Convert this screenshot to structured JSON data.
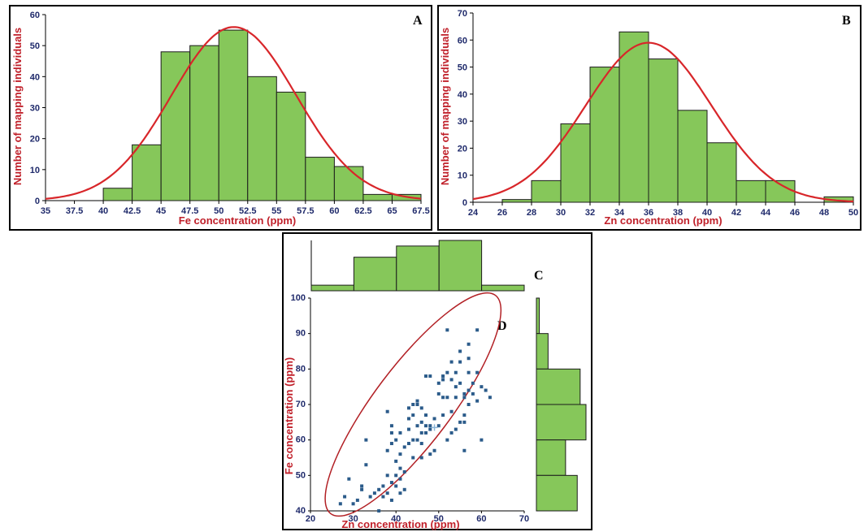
{
  "chart_data": [
    {
      "panel_label": "A",
      "type": "bar",
      "xlabel": "Fe concentration (ppm)",
      "ylabel": "Number of mapping individuals",
      "xlim": [
        35,
        67.5
      ],
      "ylim": [
        0,
        60
      ],
      "x_ticks": [
        "35",
        "37.5",
        "40",
        "42.5",
        "45",
        "47.5",
        "50",
        "52.5",
        "55",
        "57.5",
        "60",
        "62.5",
        "65",
        "67.5"
      ],
      "y_ticks": [
        "0",
        "10",
        "20",
        "30",
        "40",
        "50",
        "60"
      ],
      "bin_edges": [
        40,
        42.5,
        45,
        47.5,
        50,
        52.5,
        55,
        57.5,
        60,
        62.5,
        65,
        67.5
      ],
      "values": [
        4,
        18,
        48,
        50,
        55,
        40,
        35,
        14,
        11,
        2,
        2
      ],
      "normal_curve": {
        "mean": 51.3,
        "sd": 5.4,
        "peak": 56
      }
    },
    {
      "panel_label": "B",
      "type": "bar",
      "xlabel": "Zn concentration (ppm)",
      "ylabel": "Number of mapping individuals",
      "xlim": [
        24,
        50
      ],
      "ylim": [
        0,
        70
      ],
      "x_ticks": [
        "24",
        "26",
        "28",
        "30",
        "32",
        "34",
        "36",
        "38",
        "40",
        "42",
        "44",
        "46",
        "48",
        "50"
      ],
      "y_ticks": [
        "0",
        "10",
        "20",
        "30",
        "40",
        "50",
        "60",
        "70"
      ],
      "bin_edges": [
        26,
        28,
        30,
        32,
        34,
        36,
        38,
        40,
        42,
        44,
        46,
        48,
        50
      ],
      "values": [
        1,
        8,
        29,
        50,
        63,
        53,
        34,
        22,
        8,
        8,
        0,
        2
      ],
      "normal_curve": {
        "mean": 36,
        "sd": 4.3,
        "peak": 59
      }
    },
    {
      "panel_label": "C",
      "type": "bar",
      "orientation": "vertical",
      "values": [
        1,
        6,
        8,
        9,
        1
      ]
    },
    {
      "panel_label": "D",
      "type": "scatter",
      "xlabel": "Zn concentration (ppm)",
      "ylabel": "Fe concentration (ppm)",
      "xlim": [
        20,
        70
      ],
      "ylim": [
        40,
        100
      ],
      "x_ticks": [
        "20",
        "30",
        "40",
        "50",
        "60",
        "70"
      ],
      "y_ticks": [
        "40",
        "50",
        "60",
        "70",
        "80",
        "90",
        "100"
      ],
      "points": [
        [
          27,
          42
        ],
        [
          28,
          44
        ],
        [
          29,
          49
        ],
        [
          30,
          42
        ],
        [
          31,
          43
        ],
        [
          32,
          46
        ],
        [
          32,
          47
        ],
        [
          33,
          53
        ],
        [
          33,
          60
        ],
        [
          34,
          44
        ],
        [
          35,
          45
        ],
        [
          36,
          46
        ],
        [
          36,
          40
        ],
        [
          37,
          47
        ],
        [
          37,
          44
        ],
        [
          38,
          45
        ],
        [
          38,
          50
        ],
        [
          38,
          57
        ],
        [
          38,
          68
        ],
        [
          39,
          43
        ],
        [
          39,
          48
        ],
        [
          39,
          59
        ],
        [
          39,
          62
        ],
        [
          39,
          64
        ],
        [
          40,
          47
        ],
        [
          40,
          50
        ],
        [
          40,
          54
        ],
        [
          40,
          60
        ],
        [
          41,
          45
        ],
        [
          41,
          49
        ],
        [
          41,
          52
        ],
        [
          41,
          56
        ],
        [
          41,
          62
        ],
        [
          42,
          46
        ],
        [
          42,
          51
        ],
        [
          42,
          58
        ],
        [
          43,
          59
        ],
        [
          43,
          63
        ],
        [
          43,
          66
        ],
        [
          43,
          69
        ],
        [
          44,
          55
        ],
        [
          44,
          60
        ],
        [
          44,
          67
        ],
        [
          44,
          70
        ],
        [
          45,
          60
        ],
        [
          45,
          64
        ],
        [
          45,
          70
        ],
        [
          45,
          71
        ],
        [
          46,
          55
        ],
        [
          46,
          59
        ],
        [
          46,
          62
        ],
        [
          46,
          65
        ],
        [
          46,
          69
        ],
        [
          47,
          62
        ],
        [
          47,
          64
        ],
        [
          47,
          67
        ],
        [
          47,
          78
        ],
        [
          48,
          56
        ],
        [
          48,
          63
        ],
        [
          48,
          64
        ],
        [
          48,
          78
        ],
        [
          49,
          57
        ],
        [
          49,
          66
        ],
        [
          50,
          64
        ],
        [
          50,
          73
        ],
        [
          50,
          76
        ],
        [
          51,
          67
        ],
        [
          51,
          72
        ],
        [
          51,
          77
        ],
        [
          51,
          78
        ],
        [
          52,
          60
        ],
        [
          52,
          72
        ],
        [
          52,
          79
        ],
        [
          52,
          91
        ],
        [
          53,
          62
        ],
        [
          53,
          68
        ],
        [
          53,
          77
        ],
        [
          53,
          82
        ],
        [
          54,
          63
        ],
        [
          54,
          72
        ],
        [
          54,
          75
        ],
        [
          54,
          79
        ],
        [
          55,
          65
        ],
        [
          55,
          76
        ],
        [
          55,
          82
        ],
        [
          55,
          85
        ],
        [
          56,
          57
        ],
        [
          56,
          65
        ],
        [
          56,
          67
        ],
        [
          56,
          72
        ],
        [
          56,
          73
        ],
        [
          57,
          70
        ],
        [
          57,
          74
        ],
        [
          57,
          79
        ],
        [
          57,
          83
        ],
        [
          57,
          87
        ],
        [
          58,
          73
        ],
        [
          58,
          76
        ],
        [
          59,
          71
        ],
        [
          59,
          79
        ],
        [
          59,
          91
        ],
        [
          60,
          60
        ],
        [
          60,
          75
        ],
        [
          61,
          74
        ],
        [
          62,
          72
        ]
      ],
      "mean_marker": [
        49,
        63.5
      ],
      "confidence_ellipse": {
        "center": [
          44,
          70
        ],
        "rx_units": 32,
        "ry_units": 9,
        "angle_deg": -53
      }
    },
    {
      "panel_label": "",
      "type": "bar",
      "orientation": "horizontal",
      "values": [
        1,
        4,
        15,
        17,
        10,
        14
      ]
    }
  ]
}
